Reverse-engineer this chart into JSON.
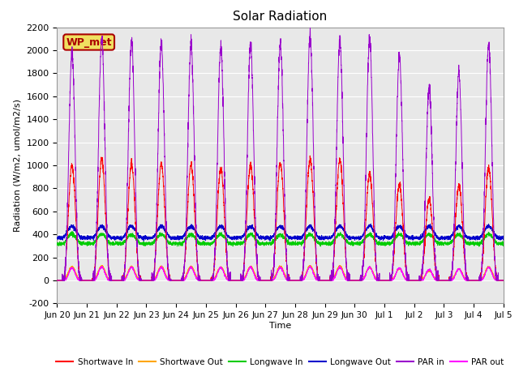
{
  "title": "Solar Radiation",
  "ylabel": "Radiation (W/m2, umol/m2/s)",
  "xlabel": "Time",
  "ylim": [
    -200,
    2200
  ],
  "background_color": "#e8e8e8",
  "figure_background": "#ffffff",
  "annotation_text": "WP_met",
  "annotation_bg": "#f0e060",
  "annotation_border": "#aa0000",
  "x_tick_labels": [
    "Jun 20",
    "Jun 21",
    "Jun 22",
    "Jun 23",
    "Jun 24",
    "Jun 25",
    "Jun 26",
    "Jun 27",
    "Jun 28",
    "Jun 29",
    "Jun 30",
    "Jul 1",
    "Jul 2",
    "Jul 3",
    "Jul 4",
    "Jul 5"
  ],
  "yticks": [
    -200,
    0,
    200,
    400,
    600,
    800,
    1000,
    1200,
    1400,
    1600,
    1800,
    2000,
    2200
  ],
  "series_colors": {
    "shortwave_in": "#ff0000",
    "shortwave_out": "#ffa500",
    "longwave_in": "#00cc00",
    "longwave_out": "#0000cc",
    "par_in": "#9900cc",
    "par_out": "#ff00ff"
  },
  "legend_labels": [
    "Shortwave In",
    "Shortwave Out",
    "Longwave In",
    "Longwave Out",
    "PAR in",
    "PAR out"
  ],
  "n_days": 15,
  "points_per_day": 288,
  "sw_in_peaks": [
    1000,
    1050,
    1010,
    1010,
    1000,
    975,
    1000,
    1020,
    1050,
    1050,
    920,
    830,
    700,
    820,
    975
  ],
  "par_in_peaks": [
    1970,
    2100,
    2080,
    2060,
    2050,
    2030,
    2050,
    2060,
    2120,
    2080,
    2100,
    1950,
    1680,
    1800,
    2060
  ],
  "lw_in_base": 320,
  "lw_in_range": 80,
  "lw_out_base": 370,
  "lw_out_range": 100
}
